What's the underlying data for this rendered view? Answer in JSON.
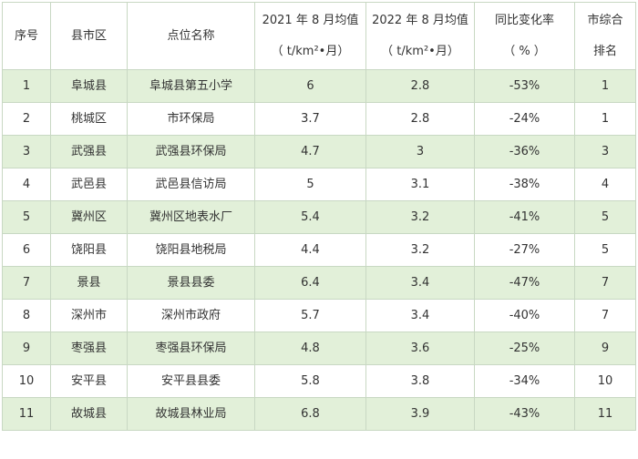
{
  "table": {
    "headers": {
      "index": "序号",
      "county": "县市区",
      "site": "点位名称",
      "y2021_line1": "2021 年 8 月均值",
      "y2021_line2": "（ t/km²•月）",
      "y2022_line1": "2022 年 8 月均值",
      "y2022_line2": "（ t/km²•月）",
      "change_line1": "同比变化率",
      "change_line2": "（ % ）",
      "rank_line1": "市综合",
      "rank_line2": "排名"
    },
    "rows": [
      {
        "index": "1",
        "county": "阜城县",
        "site": "阜城县第五小学",
        "v2021": "6",
        "v2022": "2.8",
        "change": "-53%",
        "rank": "1"
      },
      {
        "index": "2",
        "county": "桃城区",
        "site": "市环保局",
        "v2021": "3.7",
        "v2022": "2.8",
        "change": "-24%",
        "rank": "1"
      },
      {
        "index": "3",
        "county": "武强县",
        "site": "武强县环保局",
        "v2021": "4.7",
        "v2022": "3",
        "change": "-36%",
        "rank": "3"
      },
      {
        "index": "4",
        "county": "武邑县",
        "site": "武邑县信访局",
        "v2021": "5",
        "v2022": "3.1",
        "change": "-38%",
        "rank": "4"
      },
      {
        "index": "5",
        "county": "冀州区",
        "site": "冀州区地表水厂",
        "v2021": "5.4",
        "v2022": "3.2",
        "change": "-41%",
        "rank": "5"
      },
      {
        "index": "6",
        "county": "饶阳县",
        "site": "饶阳县地税局",
        "v2021": "4.4",
        "v2022": "3.2",
        "change": "-27%",
        "rank": "5"
      },
      {
        "index": "7",
        "county": "景县",
        "site": "景县县委",
        "v2021": "6.4",
        "v2022": "3.4",
        "change": "-47%",
        "rank": "7"
      },
      {
        "index": "8",
        "county": "深州市",
        "site": "深州市政府",
        "v2021": "5.7",
        "v2022": "3.4",
        "change": "-40%",
        "rank": "7"
      },
      {
        "index": "9",
        "county": "枣强县",
        "site": "枣强县环保局",
        "v2021": "4.8",
        "v2022": "3.6",
        "change": "-25%",
        "rank": "9"
      },
      {
        "index": "10",
        "county": "安平县",
        "site": "安平县县委",
        "v2021": "5.8",
        "v2022": "3.8",
        "change": "-34%",
        "rank": "10"
      },
      {
        "index": "11",
        "county": "故城县",
        "site": "故城县林业局",
        "v2021": "6.8",
        "v2022": "3.9",
        "change": "-43%",
        "rank": "11"
      }
    ],
    "colors": {
      "shaded_row": "#e2f0d9",
      "plain_row": "#ffffff",
      "border": "#c8d8c3",
      "text": "#333333"
    }
  }
}
